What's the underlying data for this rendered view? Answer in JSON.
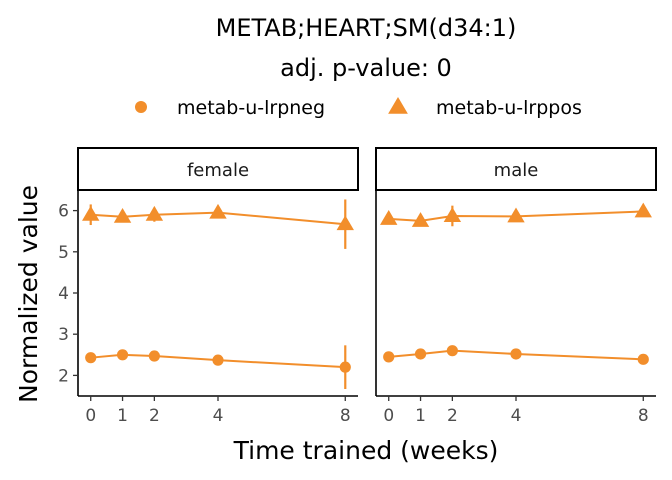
{
  "chart_data": {
    "type": "line",
    "title": "METAB;HEART;SM(d34:1)",
    "subtitle": "adj. p-value: 0",
    "xlabel": "Time trained (weeks)",
    "ylabel": "Normalized value",
    "x_ticks": [
      0,
      1,
      2,
      4,
      8
    ],
    "x_tick_labels": [
      "0",
      "1",
      "2",
      "4",
      "8"
    ],
    "y_ticks": [
      2,
      3,
      4,
      5,
      6
    ],
    "y_tick_labels": [
      "2",
      "3",
      "4",
      "5",
      "6"
    ],
    "xlim": [
      -0.4,
      8.4
    ],
    "ylim": [
      1.5,
      6.5
    ],
    "legend_position": "top",
    "grid": false,
    "color": "#F28E2B",
    "legend": [
      {
        "label": "metab-u-lrpneg",
        "shape": "circle"
      },
      {
        "label": "metab-u-lrppos",
        "shape": "triangle"
      }
    ],
    "panels": [
      {
        "label": "female",
        "series": [
          {
            "name": "metab-u-lrpneg",
            "shape": "circle",
            "x": [
              0,
              1,
              2,
              4,
              8
            ],
            "y": [
              2.43,
              2.5,
              2.47,
              2.37,
              2.2
            ],
            "err": [
              0.05,
              0.05,
              0.04,
              0.12,
              0.53
            ]
          },
          {
            "name": "metab-u-lrppos",
            "shape": "triangle",
            "x": [
              0,
              1,
              2,
              4,
              8
            ],
            "y": [
              5.9,
              5.85,
              5.9,
              5.95,
              5.67
            ],
            "err": [
              0.25,
              0.07,
              0.17,
              0.05,
              0.6
            ]
          }
        ]
      },
      {
        "label": "male",
        "series": [
          {
            "name": "metab-u-lrpneg",
            "shape": "circle",
            "x": [
              0,
              1,
              2,
              4,
              8
            ],
            "y": [
              2.45,
              2.52,
              2.6,
              2.52,
              2.39
            ],
            "err": [
              0.04,
              0.05,
              0.05,
              0.04,
              0.04
            ]
          },
          {
            "name": "metab-u-lrppos",
            "shape": "triangle",
            "x": [
              0,
              1,
              2,
              4,
              8
            ],
            "y": [
              5.8,
              5.75,
              5.87,
              5.86,
              5.98
            ],
            "err": [
              0.05,
              0.08,
              0.25,
              0.05,
              0.05
            ]
          }
        ]
      }
    ]
  }
}
